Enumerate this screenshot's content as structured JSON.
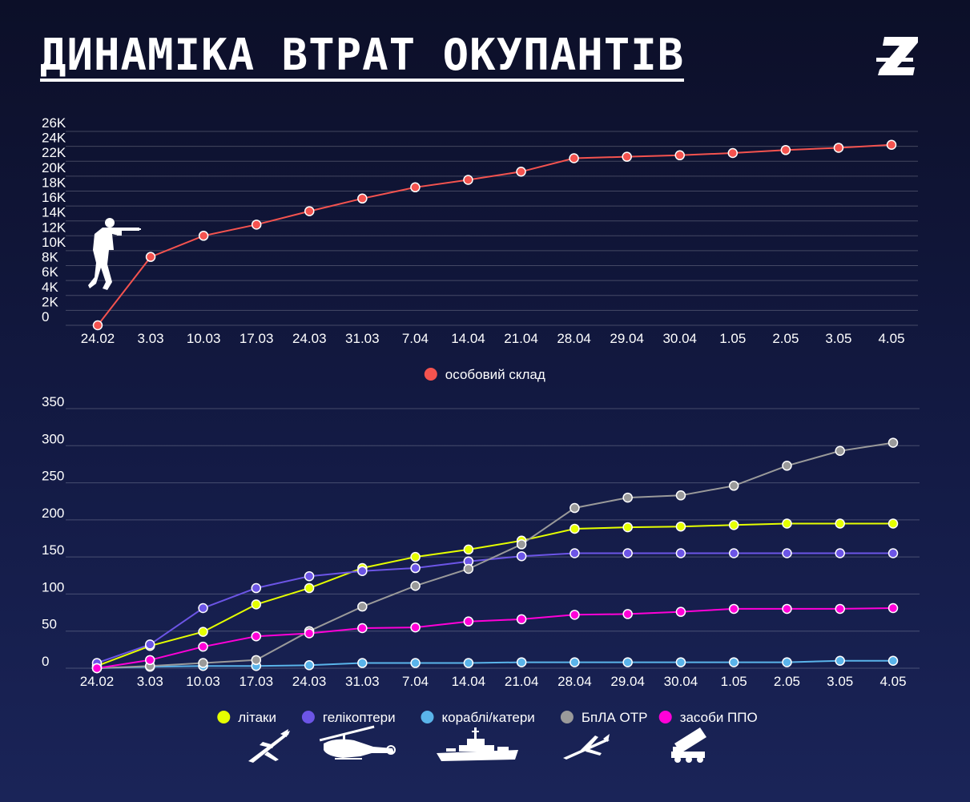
{
  "header": {
    "title": "ДИНАМІКА ВТРАТ ОКУПАНТІВ"
  },
  "logo": {
    "icon": "z-logo-icon"
  },
  "chart_data": [
    {
      "type": "line",
      "title": "",
      "categories": [
        "24.02",
        "3.03",
        "10.03",
        "17.03",
        "24.03",
        "31.03",
        "7.04",
        "14.04",
        "21.04",
        "28.04",
        "29.04",
        "30.04",
        "1.05",
        "2.05",
        "3.05",
        "4.05"
      ],
      "y_tick_labels": [
        "26K",
        "24K",
        "22K",
        "20K",
        "18K",
        "16K",
        "14K",
        "12K",
        "10K",
        "8K",
        "6K",
        "4K",
        "2K",
        "0"
      ],
      "ylim": [
        0,
        26000
      ],
      "grid": true,
      "legend_position": "bottom-center",
      "series": [
        {
          "name": "особовий склад",
          "color": "#f4534f",
          "values": [
            0,
            9166,
            12000,
            13500,
            15300,
            17000,
            18500,
            19500,
            20600,
            22400,
            22600,
            22800,
            23100,
            23500,
            23800,
            24200
          ]
        }
      ],
      "icons": [
        "soldier-icon"
      ]
    },
    {
      "type": "line",
      "title": "",
      "categories": [
        "24.02",
        "3.03",
        "10.03",
        "17.03",
        "24.03",
        "31.03",
        "7.04",
        "14.04",
        "21.04",
        "28.04",
        "29.04",
        "30.04",
        "1.05",
        "2.05",
        "3.05",
        "4.05"
      ],
      "y_tick_labels": [
        "350",
        "300",
        "250",
        "200",
        "150",
        "100",
        "50",
        "0"
      ],
      "ylim": [
        0,
        350
      ],
      "grid": true,
      "legend_position": "bottom-center",
      "series": [
        {
          "name": "літаки",
          "color": "#e5ff00",
          "values": [
            3,
            30,
            49,
            86,
            108,
            135,
            150,
            160,
            172,
            188,
            190,
            191,
            193,
            195,
            195,
            195
          ]
        },
        {
          "name": "гелікоптери",
          "color": "#6c55e6",
          "values": [
            7,
            32,
            81,
            108,
            124,
            131,
            135,
            144,
            151,
            155,
            155,
            155,
            155,
            155,
            155,
            155
          ]
        },
        {
          "name": "кораблі/катери",
          "color": "#5ab4ea",
          "values": [
            0,
            2,
            3,
            3,
            4,
            7,
            7,
            7,
            8,
            8,
            8,
            8,
            8,
            8,
            10,
            10
          ]
        },
        {
          "name": "БпЛА ОТР",
          "color": "#9a9a9a",
          "values": [
            0,
            3,
            7,
            11,
            50,
            83,
            111,
            134,
            167,
            216,
            230,
            233,
            246,
            273,
            293,
            304
          ]
        },
        {
          "name": "засоби ППО",
          "color": "#ff00d8",
          "values": [
            0,
            11,
            29,
            43,
            47,
            54,
            55,
            63,
            66,
            72,
            73,
            76,
            80,
            80,
            80,
            81
          ]
        }
      ],
      "icons": [
        "airplane-icon",
        "helicopter-icon",
        "warship-icon",
        "drone-icon",
        "air-defense-icon"
      ]
    }
  ]
}
